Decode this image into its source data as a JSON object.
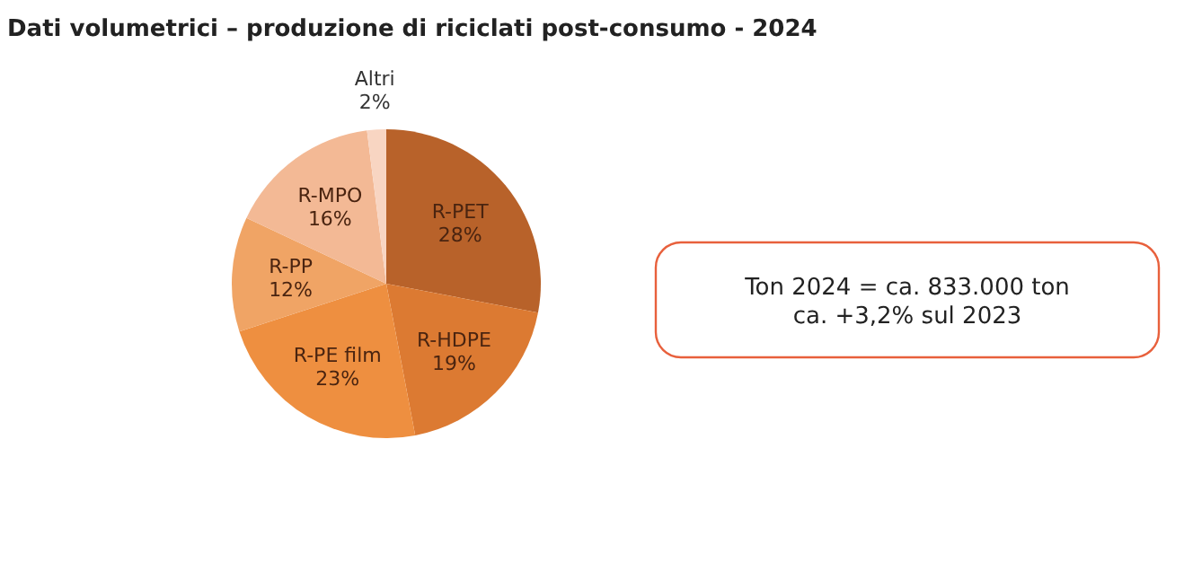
{
  "chart_data": {
    "type": "pie",
    "title": "Dati volumetrici – produzione di riciclati post-consumo - 2024",
    "categories": [
      "R-PET",
      "R-HDPE",
      "R-PE film",
      "R-PP",
      "R-MPO",
      "Altri"
    ],
    "values": [
      28,
      19,
      23,
      12,
      16,
      2
    ],
    "value_labels": [
      "28%",
      "19%",
      "23%",
      "12%",
      "16%",
      "2%"
    ],
    "colors": [
      "#b8622a",
      "#dc7a32",
      "#ee8f40",
      "#f0a465",
      "#f3b995",
      "#f8d5c2"
    ],
    "annotations": [
      "Ton 2024 = ca. 833.000 ton\nca. +3,2% sul 2023"
    ]
  }
}
